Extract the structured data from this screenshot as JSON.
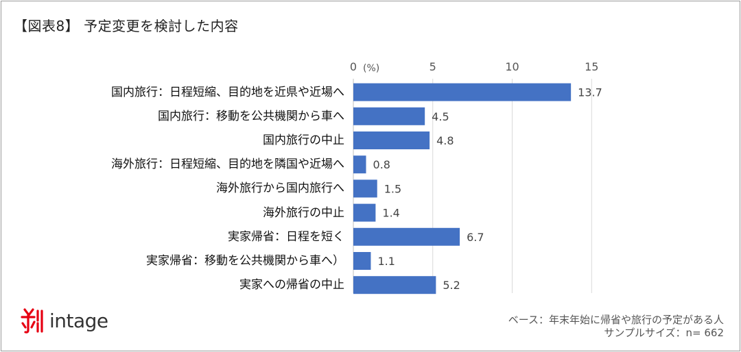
{
  "header": {
    "title": "【図表8】 予定変更を検討した内容"
  },
  "chart_data": {
    "type": "bar",
    "orientation": "horizontal",
    "unit_label": "(%)",
    "xlim": [
      0,
      15
    ],
    "ticks": [
      "0",
      "5",
      "10",
      "15"
    ],
    "tick_values": [
      0,
      5,
      10,
      15
    ],
    "grid": true,
    "bar_color": "#4472C4",
    "categories": [
      "国内旅行：日程短縮、目的地を近県や近場へ",
      "国内旅行：移動を公共機関から車へ",
      "国内旅行の中止",
      "海外旅行：日程短縮、目的地を隣国や近場へ",
      "海外旅行から国内旅行へ",
      "海外旅行の中止",
      "実家帰省：日程を短く",
      "実家帰省：移動を公共機関から車へ）",
      "実家への帰省の中止"
    ],
    "values": [
      13.7,
      4.5,
      4.8,
      0.8,
      1.5,
      1.4,
      6.7,
      1.1,
      5.2
    ],
    "value_labels": [
      "13.7",
      "4.5",
      "4.8",
      "0.8",
      "1.5",
      "1.4",
      "6.7",
      "1.1",
      "5.2"
    ]
  },
  "footer": {
    "base_line1": "ベース：年末年始に帰省や旅行の予定がある人",
    "base_line2": "サンプルサイズ：n= 662",
    "logo_text": "intage",
    "logo_icon": "intage-mark-icon",
    "logo_color": "#e60012"
  }
}
